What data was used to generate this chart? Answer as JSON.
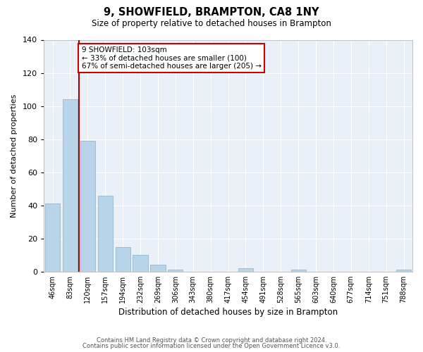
{
  "title": "9, SHOWFIELD, BRAMPTON, CA8 1NY",
  "subtitle": "Size of property relative to detached houses in Brampton",
  "xlabel": "Distribution of detached houses by size in Brampton",
  "ylabel": "Number of detached properties",
  "bar_labels": [
    "46sqm",
    "83sqm",
    "120sqm",
    "157sqm",
    "194sqm",
    "232sqm",
    "269sqm",
    "306sqm",
    "343sqm",
    "380sqm",
    "417sqm",
    "454sqm",
    "491sqm",
    "528sqm",
    "565sqm",
    "603sqm",
    "640sqm",
    "677sqm",
    "714sqm",
    "751sqm",
    "788sqm"
  ],
  "bar_values": [
    41,
    104,
    79,
    46,
    15,
    10,
    4,
    1,
    0,
    0,
    0,
    2,
    0,
    0,
    1,
    0,
    0,
    0,
    0,
    0,
    1
  ],
  "bar_color": "#b8d4e8",
  "bar_edge_color": "#8ab0cc",
  "vline_color": "#aa0000",
  "annotation_text": "9 SHOWFIELD: 103sqm\n← 33% of detached houses are smaller (100)\n67% of semi-detached houses are larger (205) →",
  "annotation_box_edgecolor": "#cc0000",
  "annotation_box_facecolor": "#ffffff",
  "ylim": [
    0,
    140
  ],
  "yticks": [
    0,
    20,
    40,
    60,
    80,
    100,
    120,
    140
  ],
  "footnote1": "Contains HM Land Registry data © Crown copyright and database right 2024.",
  "footnote2": "Contains public sector information licensed under the Open Government Licence v3.0.",
  "bg_color": "#ffffff",
  "plot_bg_color": "#eaf0f8",
  "grid_color": "#ffffff"
}
